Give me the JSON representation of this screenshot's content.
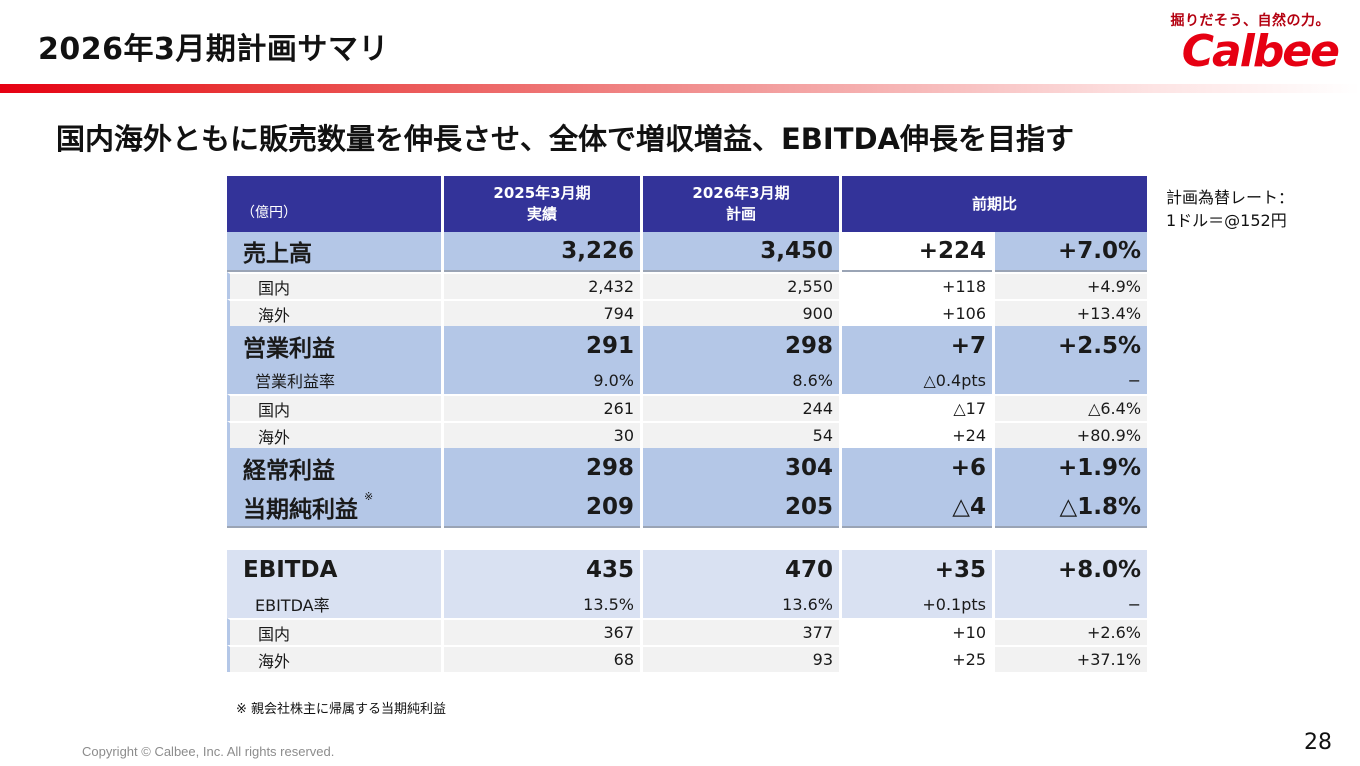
{
  "header": {
    "title": "2026年3月期計画サマリ",
    "tagline": "掘りだそう、自然の力。",
    "logo_text": "Calbee"
  },
  "headline": "国内海外ともに販売数量を伸長させ、全体で増収増益、EBITDA伸長を目指す",
  "fx_note": {
    "line1": "計画為替レート：",
    "line2": "1ドル＝@152円"
  },
  "table": {
    "unit": "（億円）",
    "col1_line1": "2025年3月期",
    "col1_line2": "実績",
    "col2_line1": "2026年3月期",
    "col2_line2": "計画",
    "col3": "前期比",
    "rows": {
      "sales": {
        "label": "売上高",
        "fy25": "3,226",
        "fy26": "3,450",
        "diff": "+224",
        "pct": "+7.0%"
      },
      "sales_dom": {
        "label": "国内",
        "fy25": "2,432",
        "fy26": "2,550",
        "diff": "+118",
        "pct": "+4.9%"
      },
      "sales_ovs": {
        "label": "海外",
        "fy25": "794",
        "fy26": "900",
        "diff": "+106",
        "pct": "+13.4%"
      },
      "op": {
        "label": "営業利益",
        "fy25": "291",
        "fy26": "298",
        "diff": "+7",
        "pct": "+2.5%"
      },
      "op_margin": {
        "label": "営業利益率",
        "fy25": "9.0%",
        "fy26": "8.6%",
        "diff": "△0.4pts",
        "pct": "−"
      },
      "op_dom": {
        "label": "国内",
        "fy25": "261",
        "fy26": "244",
        "diff": "△17",
        "pct": "△6.4%"
      },
      "op_ovs": {
        "label": "海外",
        "fy25": "30",
        "fy26": "54",
        "diff": "+24",
        "pct": "+80.9%"
      },
      "ordinary": {
        "label": "経常利益",
        "fy25": "298",
        "fy26": "304",
        "diff": "+6",
        "pct": "+1.9%"
      },
      "net": {
        "label": "当期純利益",
        "mark": "※",
        "fy25": "209",
        "fy26": "205",
        "diff": "△4",
        "pct": "△1.8%"
      },
      "ebitda": {
        "label": "EBITDA",
        "fy25": "435",
        "fy26": "470",
        "diff": "+35",
        "pct": "+8.0%"
      },
      "ebitda_margin": {
        "label": "EBITDA率",
        "fy25": "13.5%",
        "fy26": "13.6%",
        "diff": "+0.1pts",
        "pct": "−"
      },
      "ebitda_dom": {
        "label": "国内",
        "fy25": "367",
        "fy26": "377",
        "diff": "+10",
        "pct": "+2.6%"
      },
      "ebitda_ovs": {
        "label": "海外",
        "fy25": "68",
        "fy26": "93",
        "diff": "+25",
        "pct": "+37.1%"
      }
    }
  },
  "footnote": "※ 親会社株主に帰属する当期純利益",
  "copyright": "Copyright © Calbee, Inc. All rights reserved.",
  "page_number": "28"
}
